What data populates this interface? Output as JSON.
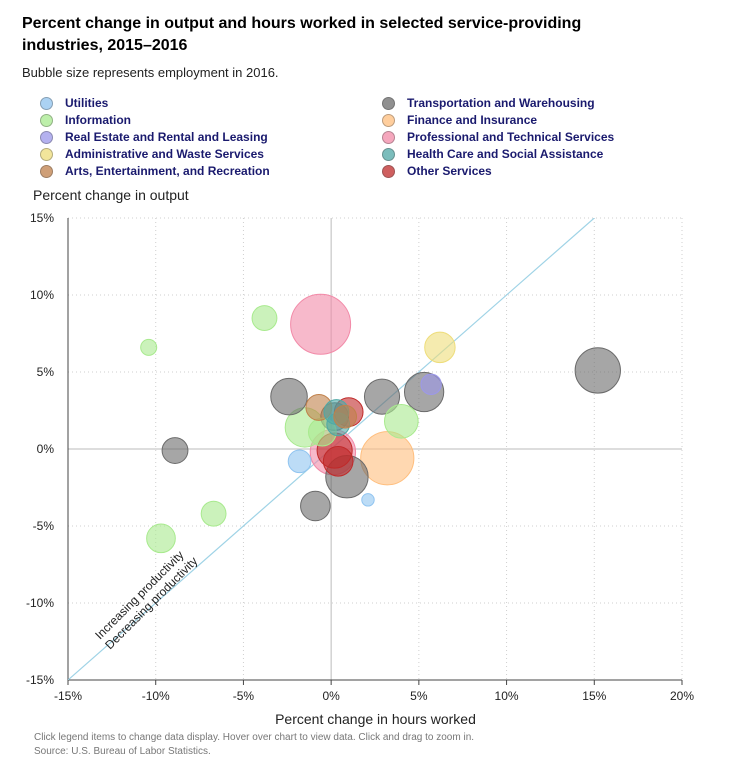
{
  "chart_data": {
    "type": "scatter",
    "title": "Percent change in output and hours worked in selected service-providing industries, 2015–2016",
    "subtitle": "Bubble size represents employment in 2016.",
    "xlabel": "Percent change in hours worked",
    "ylabel": "Percent change in output",
    "xlim": [
      -15,
      20
    ],
    "ylim": [
      -15,
      15
    ],
    "x_ticks": [
      -15,
      -10,
      -5,
      0,
      5,
      10,
      15,
      20
    ],
    "y_ticks": [
      -15,
      -10,
      -5,
      0,
      5,
      10,
      15
    ],
    "x_tick_labels": [
      "-15%",
      "-10%",
      "-5%",
      "0%",
      "5%",
      "10%",
      "15%",
      "20%"
    ],
    "y_tick_labels": [
      "-15%",
      "-10%",
      "-5%",
      "0%",
      "5%",
      "10%",
      "15%"
    ],
    "grid": true,
    "legend_position": "top",
    "annotations": [
      "Increasing productivity",
      "Decreasing productivity"
    ],
    "series": [
      {
        "name": "Utilities",
        "color": "#90c4f0",
        "points": [
          {
            "x": -1.8,
            "y": -0.8,
            "size": 1.0
          },
          {
            "x": 2.1,
            "y": -3.3,
            "size": 0.3
          }
        ]
      },
      {
        "name": "Transportation and Warehousing",
        "color": "#6b6b6b",
        "points": [
          {
            "x": -2.4,
            "y": 3.4,
            "size": 2.6
          },
          {
            "x": -8.9,
            "y": -0.1,
            "size": 1.3
          },
          {
            "x": -0.9,
            "y": -3.7,
            "size": 1.7
          },
          {
            "x": 2.9,
            "y": 3.4,
            "size": 2.4
          },
          {
            "x": 5.3,
            "y": 3.7,
            "size": 3.0
          },
          {
            "x": 0.9,
            "y": -1.8,
            "size": 3.5
          },
          {
            "x": 0.2,
            "y": 2.1,
            "size": 1.5
          },
          {
            "x": 15.2,
            "y": 5.1,
            "size": 4.0
          }
        ]
      },
      {
        "name": "Information",
        "color": "#a8ea8e",
        "points": [
          {
            "x": -10.4,
            "y": 6.6,
            "size": 0.5
          },
          {
            "x": -3.8,
            "y": 8.5,
            "size": 1.2
          },
          {
            "x": -9.7,
            "y": -5.8,
            "size": 1.6
          },
          {
            "x": -6.7,
            "y": -4.2,
            "size": 1.2
          },
          {
            "x": -1.5,
            "y": 1.4,
            "size": 3.0
          },
          {
            "x": 4.0,
            "y": 1.8,
            "size": 2.2
          },
          {
            "x": -0.5,
            "y": 1.1,
            "size": 1.5
          }
        ]
      },
      {
        "name": "Finance and Insurance",
        "color": "#ffbe7d",
        "points": [
          {
            "x": 3.2,
            "y": -0.6,
            "size": 5.5
          }
        ]
      },
      {
        "name": "Real Estate and Rental and Leasing",
        "color": "#9c98ea",
        "points": [
          {
            "x": 5.7,
            "y": 4.2,
            "size": 0.8
          }
        ]
      },
      {
        "name": "Professional and Technical Services",
        "color": "#f28aa8",
        "points": [
          {
            "x": -0.6,
            "y": 8.1,
            "size": 7.0
          },
          {
            "x": 0.1,
            "y": -0.2,
            "size": 4.0
          }
        ]
      },
      {
        "name": "Administrative and Waste Services",
        "color": "#eedd7a",
        "points": [
          {
            "x": 6.2,
            "y": 6.6,
            "size": 1.8
          }
        ]
      },
      {
        "name": "Health Care and Social Assistance",
        "color": "#4fa8a6",
        "points": [
          {
            "x": 0.3,
            "y": 2.4,
            "size": 1.2
          },
          {
            "x": 0.4,
            "y": 1.6,
            "size": 1.0
          }
        ]
      },
      {
        "name": "Arts, Entertainment, and Recreation",
        "color": "#c0804a",
        "points": [
          {
            "x": -0.7,
            "y": 2.7,
            "size": 1.3
          },
          {
            "x": 0.8,
            "y": 2.1,
            "size": 1.0
          }
        ]
      },
      {
        "name": "Other Services",
        "color": "#c02a2a",
        "points": [
          {
            "x": 1.0,
            "y": 2.4,
            "size": 1.6
          },
          {
            "x": 0.2,
            "y": -0.1,
            "size": 2.4
          },
          {
            "x": 0.4,
            "y": -0.8,
            "size": 1.7
          }
        ]
      }
    ]
  },
  "legend": {
    "items": [
      {
        "label": "Utilities",
        "color": "#90c4f0"
      },
      {
        "label": "Transportation and Warehousing",
        "color": "#6b6b6b"
      },
      {
        "label": "Information",
        "color": "#a8ea8e"
      },
      {
        "label": "Finance and Insurance",
        "color": "#ffbe7d"
      },
      {
        "label": "Real Estate and Rental and Leasing",
        "color": "#9c98ea"
      },
      {
        "label": "Professional and Technical Services",
        "color": "#f28aa8"
      },
      {
        "label": "Administrative and Waste Services",
        "color": "#eedd7a"
      },
      {
        "label": "Health Care and Social Assistance",
        "color": "#4fa8a6"
      },
      {
        "label": "Arts, Entertainment, and Recreation",
        "color": "#c0804a"
      },
      {
        "label": "Other Services",
        "color": "#c02a2a"
      }
    ]
  },
  "footer": {
    "note": "Click legend items to change data display. Hover over chart to view data. Click and drag to zoom in.",
    "source": "Source: U.S. Bureau of Labor Statistics."
  }
}
